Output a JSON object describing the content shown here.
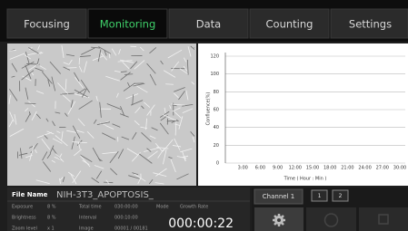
{
  "tabs": [
    "Focusing",
    "Monitoring",
    "Data",
    "Counting",
    "Settings"
  ],
  "active_tab": 1,
  "chart": {
    "type": "line",
    "y_label": "Confluence(%)",
    "x_label": "Time ( Hour : Min )",
    "ylim": [
      0,
      120
    ],
    "yticks": [
      0,
      20,
      40,
      60,
      80,
      100,
      120
    ],
    "x_tick_labels": [
      "3:00",
      "6:00",
      "9:00",
      "12:00",
      "15:00",
      "18:00",
      "21:00",
      "24:00",
      "27:00",
      "30:00"
    ],
    "grid": true
  },
  "info": {
    "file_name_label": "File Name",
    "file_name": "NIH-3T3_APOPTOSIS_",
    "rows": [
      [
        "Exposure",
        "8 %",
        "Total time",
        "030:00:00",
        "Mode",
        "Growth Rate"
      ],
      [
        "Brightness",
        "8 %",
        "Interval",
        "000:10:00"
      ],
      [
        "Zoom level",
        "x 1",
        "Image",
        "00001 / 00181"
      ]
    ],
    "timer": "000:00:22"
  },
  "controls": {
    "channel": "Channel 1",
    "channels": [
      "1",
      "2"
    ]
  }
}
